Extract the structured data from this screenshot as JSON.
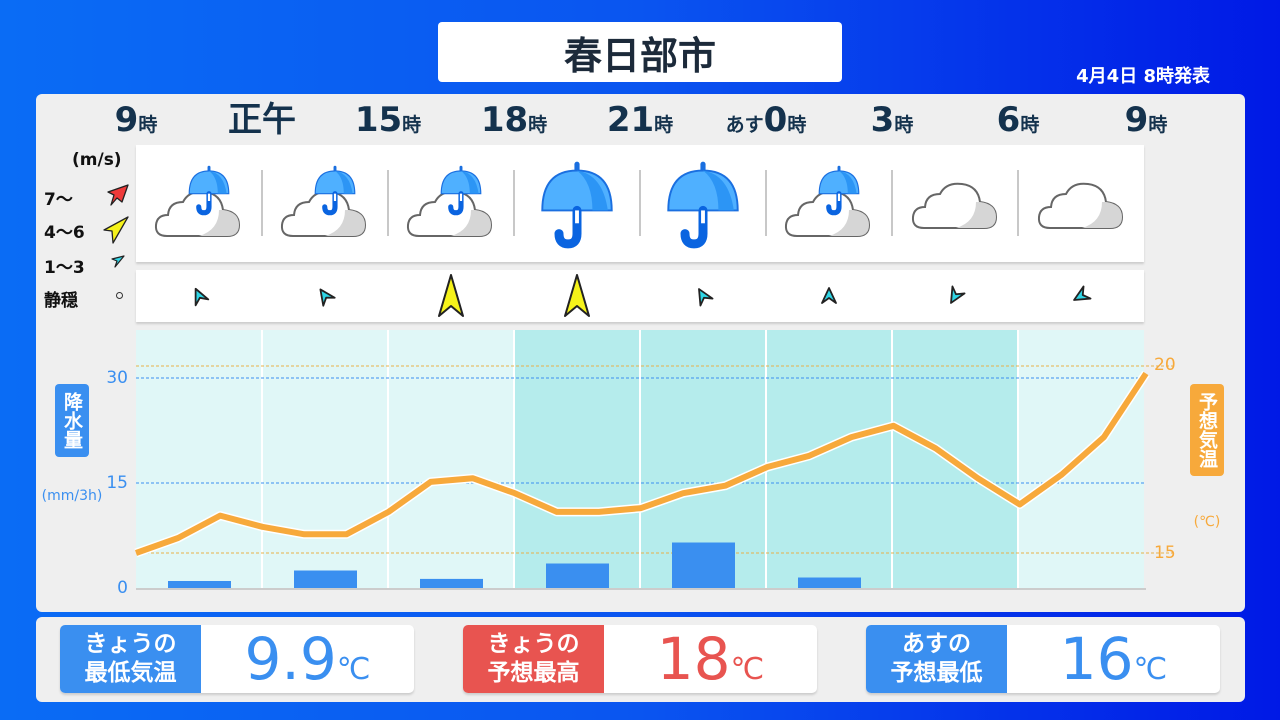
{
  "header": {
    "city": "春日部市",
    "issued": "4月4日 8時発表"
  },
  "times": [
    {
      "prefix": "",
      "num": "9",
      "suffix": "時"
    },
    {
      "prefix": "",
      "num": "正午",
      "suffix": ""
    },
    {
      "prefix": "",
      "num": "15",
      "suffix": "時"
    },
    {
      "prefix": "",
      "num": "18",
      "suffix": "時"
    },
    {
      "prefix": "",
      "num": "21",
      "suffix": "時"
    },
    {
      "prefix": "あす",
      "num": "0",
      "suffix": "時"
    },
    {
      "prefix": "",
      "num": "3",
      "suffix": "時"
    },
    {
      "prefix": "",
      "num": "6",
      "suffix": "時"
    },
    {
      "prefix": "",
      "num": "9",
      "suffix": "時"
    }
  ],
  "wind_legend": {
    "unit": "(m/s)",
    "strong": "7〜",
    "moderate": "4〜6",
    "light": "1〜3",
    "calm": "静穏"
  },
  "weather": [
    "cloudy-rain-icon",
    "cloudy-rain-icon",
    "cloudy-rain-icon",
    "rain-icon",
    "rain-icon",
    "cloudy-rain-icon",
    "cloudy-icon",
    "cloudy-icon"
  ],
  "wind": [
    {
      "level": "1〜3",
      "direction_deg": -25
    },
    {
      "level": "1〜3",
      "direction_deg": -35
    },
    {
      "level": "4〜6",
      "direction_deg": 0
    },
    {
      "level": "4〜6",
      "direction_deg": 0
    },
    {
      "level": "1〜3",
      "direction_deg": -30
    },
    {
      "level": "1〜3",
      "direction_deg": 0
    },
    {
      "level": "1〜3",
      "direction_deg": -150
    },
    {
      "level": "1〜3",
      "direction_deg": -120
    }
  ],
  "colors": {
    "precip": "#3a8ff0",
    "temp": "#f7a93b",
    "high": "#e85450",
    "wind_light": "#2fd6e6",
    "wind_moderate": "#f5f21a",
    "wind_strong": "#ef3a3a"
  },
  "chart_data": {
    "type": "bar+line",
    "precip": {
      "label": "降水量",
      "unit": "(mm/3h)",
      "ylim": [
        0,
        36
      ],
      "ticks": [
        "0",
        "15",
        "30"
      ],
      "values": [
        1,
        2.5,
        1.3,
        3.5,
        6.5,
        1.5,
        0,
        0
      ]
    },
    "temp": {
      "label": "予想気温",
      "unit": "(℃)",
      "ylim": [
        13.9,
        21
      ],
      "ticks": [
        "15",
        "20"
      ],
      "values": [
        15.0,
        15.4,
        16.0,
        15.7,
        15.5,
        15.5,
        16.1,
        16.9,
        17.0,
        16.6,
        16.1,
        16.1,
        16.2,
        16.6,
        16.8,
        17.3,
        17.6,
        18.1,
        18.4,
        17.8,
        17.0,
        16.3,
        17.1,
        18.1,
        19.8
      ]
    }
  },
  "summary": [
    {
      "label1": "きょうの",
      "label2": "最低気温",
      "value": "9.9",
      "unit": "℃"
    },
    {
      "label1": "きょうの",
      "label2": "予想最高",
      "value": "18",
      "unit": "℃"
    },
    {
      "label1": "あすの",
      "label2": "予想最低",
      "value": "16",
      "unit": "℃"
    }
  ]
}
